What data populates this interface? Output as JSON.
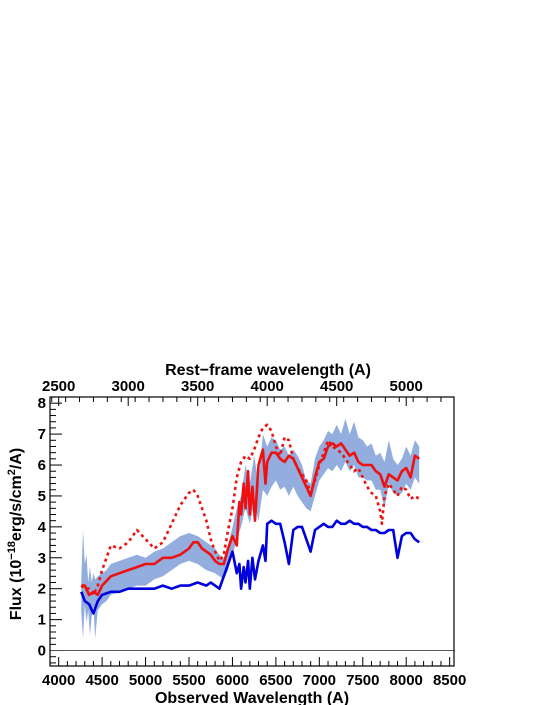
{
  "chart_data": {
    "type": "line",
    "top_axis_label": "Rest−frame wavelength (A)",
    "xlabel": "Observed Wavelength (A)",
    "ylabel": {
      "prefix": "Flux (10",
      "exp1": "−18",
      "mid": "erg/s/cm",
      "exp2": "2",
      "suffix": "/A)"
    },
    "xlim": [
      3900,
      8550
    ],
    "ylim": [
      -0.5,
      8.2
    ],
    "x_ticks": [
      4000,
      4500,
      5000,
      5500,
      6000,
      6500,
      7000,
      7500,
      8000,
      8500
    ],
    "y_ticks": [
      0,
      1,
      2,
      3,
      4,
      5,
      6,
      7,
      8
    ],
    "top_ticks": [
      2500,
      3000,
      3500,
      4000,
      4500,
      5000
    ],
    "redshift_factor": 1.6,
    "zero_line": 0,
    "series": [
      {
        "color": "#7f9fd8",
        "style": "band",
        "x": [
          4260,
          4280,
          4300,
          4320,
          4340,
          4360,
          4380,
          4400,
          4420,
          4450,
          4500,
          4550,
          4600,
          4700,
          4800,
          4900,
          5000,
          5100,
          5200,
          5300,
          5400,
          5500,
          5600,
          5700,
          5800,
          5850,
          5900,
          5950,
          6000,
          6050,
          6100,
          6150,
          6200,
          6250,
          6300,
          6350,
          6400,
          6450,
          6500,
          6550,
          6600,
          6650,
          6700,
          6750,
          6800,
          6850,
          6900,
          6950,
          7000,
          7050,
          7100,
          7150,
          7200,
          7250,
          7300,
          7350,
          7400,
          7450,
          7500,
          7550,
          7600,
          7650,
          7700,
          7750,
          7800,
          7850,
          7900,
          7950,
          8000,
          8050,
          8100,
          8150
        ],
        "upper": [
          2.3,
          3.9,
          2.8,
          3.1,
          2.2,
          2.7,
          2.2,
          2.5,
          2.3,
          2.4,
          2.5,
          2.6,
          2.8,
          2.9,
          3.0,
          3.1,
          3.0,
          3.2,
          3.3,
          3.5,
          3.7,
          3.8,
          3.7,
          3.5,
          3.3,
          3.1,
          3.0,
          3.4,
          4.0,
          4.6,
          5.0,
          6.0,
          5.4,
          6.3,
          5.4,
          7.0,
          6.6,
          6.9,
          6.8,
          6.5,
          6.6,
          6.3,
          6.5,
          6.3,
          6.0,
          5.5,
          5.4,
          6.2,
          6.6,
          6.8,
          7.1,
          7.0,
          7.3,
          7.0,
          7.5,
          7.0,
          7.4,
          6.9,
          6.8,
          6.6,
          6.7,
          6.3,
          6.4,
          6.1,
          6.8,
          6.2,
          6.0,
          6.2,
          6.6,
          6.3,
          6.8,
          6.6
        ],
        "lower": [
          1.2,
          0.4,
          1.5,
          0.9,
          1.3,
          0.5,
          1.1,
          1.4,
          0.4,
          1.3,
          1.5,
          1.6,
          1.8,
          1.9,
          2.0,
          2.1,
          2.1,
          2.3,
          2.4,
          2.6,
          2.8,
          2.9,
          2.8,
          2.6,
          2.5,
          2.4,
          2.3,
          2.6,
          3.1,
          3.6,
          4.0,
          4.6,
          4.1,
          4.8,
          4.2,
          5.2,
          5.0,
          5.3,
          5.5,
          5.2,
          5.3,
          5.0,
          5.3,
          5.0,
          4.8,
          4.6,
          4.5,
          5.0,
          5.5,
          5.7,
          5.9,
          5.8,
          6.0,
          5.8,
          6.1,
          5.8,
          6.0,
          5.6,
          5.6,
          5.5,
          5.5,
          5.2,
          5.2,
          4.6,
          5.4,
          5.1,
          5.0,
          5.1,
          5.4,
          5.2,
          5.6,
          5.4
        ]
      },
      {
        "color": "#0000dd",
        "style": "solid",
        "x": [
          4260,
          4300,
          4350,
          4400,
          4450,
          4500,
          4600,
          4700,
          4800,
          4900,
          5000,
          5100,
          5200,
          5300,
          5400,
          5500,
          5600,
          5700,
          5750,
          5800,
          5850,
          5900,
          5950,
          6000,
          6050,
          6080,
          6100,
          6130,
          6150,
          6180,
          6200,
          6230,
          6260,
          6300,
          6350,
          6380,
          6400,
          6450,
          6500,
          6550,
          6600,
          6650,
          6700,
          6750,
          6800,
          6850,
          6900,
          6950,
          7000,
          7050,
          7100,
          7150,
          7200,
          7250,
          7300,
          7350,
          7400,
          7450,
          7500,
          7550,
          7600,
          7650,
          7700,
          7750,
          7800,
          7850,
          7900,
          7950,
          8000,
          8050,
          8100,
          8150
        ],
        "y": [
          1.9,
          1.6,
          1.5,
          1.2,
          1.6,
          1.8,
          1.9,
          1.9,
          2.0,
          2.0,
          2.0,
          2.0,
          2.1,
          2.0,
          2.1,
          2.1,
          2.2,
          2.1,
          2.2,
          2.1,
          2.0,
          2.4,
          2.8,
          3.2,
          2.5,
          2.8,
          2.0,
          2.7,
          2.2,
          2.9,
          2.0,
          3.0,
          2.3,
          2.9,
          3.4,
          2.9,
          4.1,
          4.2,
          4.1,
          4.1,
          3.5,
          2.8,
          3.9,
          4.0,
          4.0,
          3.6,
          3.2,
          3.9,
          4.0,
          4.1,
          4.0,
          4.0,
          4.2,
          4.1,
          4.1,
          4.2,
          4.1,
          4.1,
          4.0,
          4.0,
          3.9,
          3.9,
          3.8,
          3.8,
          3.9,
          3.9,
          3.0,
          3.7,
          3.8,
          3.8,
          3.6,
          3.5
        ]
      },
      {
        "color": "#ee1111",
        "style": "solid",
        "x": [
          4260,
          4300,
          4350,
          4400,
          4450,
          4500,
          4600,
          4700,
          4800,
          4900,
          5000,
          5100,
          5200,
          5300,
          5400,
          5500,
          5550,
          5600,
          5650,
          5700,
          5750,
          5800,
          5850,
          5900,
          5950,
          6000,
          6050,
          6080,
          6100,
          6130,
          6150,
          6180,
          6200,
          6230,
          6260,
          6300,
          6350,
          6380,
          6400,
          6450,
          6500,
          6550,
          6600,
          6650,
          6700,
          6750,
          6800,
          6850,
          6900,
          6950,
          7000,
          7050,
          7100,
          7150,
          7200,
          7250,
          7300,
          7350,
          7400,
          7450,
          7500,
          7550,
          7600,
          7650,
          7700,
          7750,
          7800,
          7850,
          7900,
          7950,
          8000,
          8050,
          8100,
          8150
        ],
        "y": [
          2.1,
          2.1,
          1.8,
          1.9,
          1.8,
          2.1,
          2.4,
          2.5,
          2.6,
          2.7,
          2.8,
          2.8,
          3.0,
          3.0,
          3.1,
          3.3,
          3.5,
          3.5,
          3.3,
          3.2,
          3.1,
          2.9,
          2.8,
          2.8,
          3.3,
          3.7,
          3.4,
          4.8,
          4.4,
          5.4,
          4.6,
          5.8,
          4.4,
          5.3,
          4.2,
          6.0,
          6.5,
          5.4,
          6.1,
          6.4,
          6.4,
          6.2,
          6.1,
          6.3,
          6.2,
          5.9,
          5.6,
          5.3,
          5.0,
          5.6,
          6.1,
          6.2,
          6.6,
          6.7,
          6.6,
          6.7,
          6.5,
          6.3,
          6.4,
          6.1,
          6.0,
          6.0,
          6.0,
          5.8,
          5.7,
          5.3,
          5.7,
          5.6,
          5.5,
          5.8,
          5.9,
          5.6,
          6.3,
          6.2
        ]
      },
      {
        "color": "#ee1111",
        "style": "dotted",
        "x": [
          4260,
          4300,
          4350,
          4400,
          4450,
          4500,
          4550,
          4600,
          4700,
          4800,
          4900,
          5000,
          5100,
          5200,
          5300,
          5400,
          5500,
          5550,
          5600,
          5650,
          5700,
          5750,
          5800,
          5850,
          5900,
          5950,
          6000,
          6050,
          6100,
          6150,
          6200,
          6250,
          6300,
          6350,
          6400,
          6450,
          6500,
          6550,
          6600,
          6650,
          6700,
          6750,
          6800,
          6850,
          6900,
          6950,
          7000,
          7050,
          7100,
          7150,
          7200,
          7250,
          7300,
          7350,
          7400,
          7450,
          7500,
          7550,
          7600,
          7650,
          7700,
          7720,
          7750,
          7800,
          7850,
          7900,
          7950,
          8000,
          8050,
          8100,
          8150
        ],
        "y": [
          2.1,
          2.0,
          2.0,
          1.8,
          2.1,
          2.6,
          3.0,
          3.4,
          3.3,
          3.5,
          3.9,
          3.6,
          3.3,
          3.5,
          4.1,
          4.7,
          5.1,
          5.2,
          5.0,
          4.6,
          4.2,
          3.6,
          3.2,
          2.9,
          3.1,
          3.9,
          4.6,
          5.6,
          6.1,
          6.3,
          6.2,
          6.5,
          6.9,
          7.2,
          7.3,
          7.1,
          6.6,
          6.3,
          6.9,
          6.8,
          6.2,
          5.9,
          5.7,
          5.5,
          5.1,
          5.5,
          6.0,
          6.4,
          6.8,
          6.6,
          6.5,
          6.4,
          6.2,
          6.0,
          5.8,
          5.9,
          5.6,
          5.3,
          5.1,
          5.0,
          4.5,
          4.1,
          5.0,
          5.4,
          5.2,
          5.0,
          5.3,
          5.2,
          4.9,
          5.0,
          4.9
        ]
      }
    ]
  }
}
